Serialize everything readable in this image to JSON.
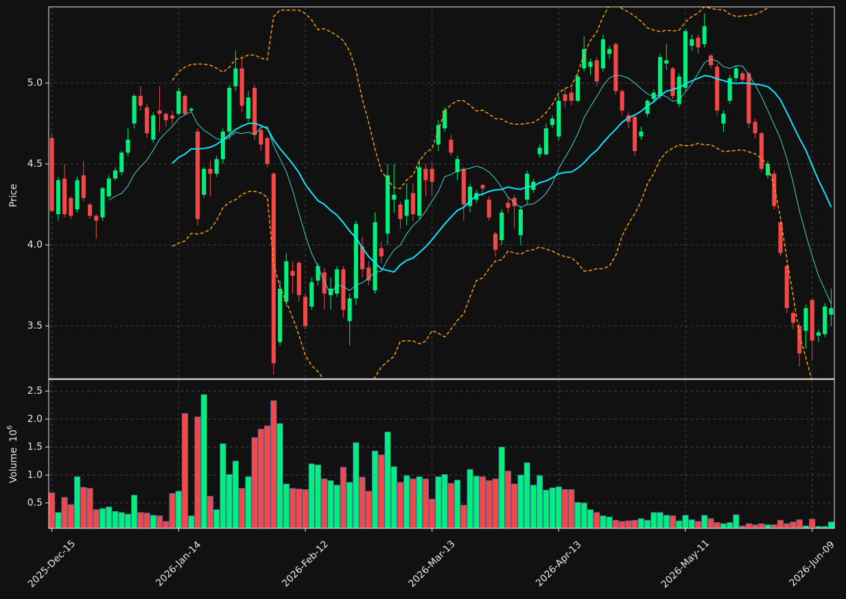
{
  "chart_data": {
    "type": "candlestick",
    "categories": [
      "2025-Dec-15",
      null,
      null,
      null,
      null,
      null,
      null,
      null,
      null,
      null,
      null,
      null,
      null,
      null,
      null,
      null,
      null,
      null,
      null,
      null,
      "2026-Jan-14",
      null,
      null,
      null,
      null,
      null,
      null,
      null,
      null,
      null,
      null,
      null,
      null,
      null,
      null,
      null,
      null,
      null,
      null,
      null,
      "2026-Feb-12",
      null,
      null,
      null,
      null,
      null,
      null,
      null,
      null,
      null,
      null,
      null,
      null,
      null,
      null,
      null,
      null,
      null,
      null,
      null,
      "2026-Mar-13",
      null,
      null,
      null,
      null,
      null,
      null,
      null,
      null,
      null,
      null,
      null,
      null,
      null,
      null,
      null,
      null,
      null,
      null,
      null,
      "2026-Apr-13",
      null,
      null,
      null,
      null,
      null,
      null,
      null,
      null,
      null,
      null,
      null,
      null,
      null,
      null,
      null,
      null,
      null,
      null,
      null,
      "2026-May-11",
      null,
      null,
      null,
      null,
      null,
      null,
      null,
      null,
      null,
      null,
      null,
      null,
      null,
      null,
      null,
      null,
      null,
      null,
      null,
      "2026-Jun-09",
      null,
      null,
      null
    ],
    "open": [
      4.66,
      4.19,
      4.41,
      4.29,
      4.22,
      4.43,
      4.25,
      4.18,
      4.17,
      4.3,
      4.41,
      4.45,
      4.57,
      4.75,
      4.92,
      4.85,
      4.65,
      4.83,
      4.81,
      4.8,
      4.81,
      4.92,
      4.83,
      4.7,
      4.31,
      4.47,
      4.44,
      4.53,
      4.7,
      4.98,
      5.09,
      4.78,
      4.97,
      4.71,
      4.66,
      4.44,
      3.4,
      3.65,
      3.84,
      3.89,
      3.68,
      3.62,
      3.78,
      3.83,
      3.69,
      3.7,
      3.85,
      3.53,
      3.67,
      3.99,
      3.86,
      3.72,
      3.98,
      4.07,
      4.28,
      4.25,
      4.18,
      4.32,
      4.18,
      4.47,
      4.47,
      4.62,
      4.72,
      4.65,
      4.45,
      4.47,
      4.24,
      4.28,
      4.37,
      4.28,
      4.07,
      4.03,
      4.26,
      4.29,
      4.06,
      4.28,
      4.34,
      4.56,
      4.56,
      4.74,
      4.67,
      4.93,
      4.94,
      4.89,
      5.09,
      5.1,
      5.14,
      5.09,
      5.18,
      5.24,
      4.95,
      4.8,
      4.79,
      4.67,
      4.81,
      4.9,
      4.92,
      5.12,
      5.09,
      4.87,
      4.97,
      5.23,
      5.28,
      5.24,
      5.17,
      5.1,
      4.75,
      4.89,
      5.03,
      5.06,
      5.06,
      4.76,
      4.69,
      4.43,
      4.44,
      4.14,
      3.87,
      3.58,
      3.5,
      3.47,
      3.66,
      3.44,
      3.45,
      3.57
    ],
    "high": [
      4.69,
      4.42,
      4.5,
      4.3,
      4.42,
      4.52,
      4.26,
      4.19,
      4.36,
      4.43,
      4.48,
      4.58,
      4.72,
      4.93,
      4.98,
      4.87,
      4.82,
      4.98,
      4.82,
      4.83,
      4.97,
      4.93,
      4.85,
      4.72,
      4.48,
      4.52,
      4.55,
      4.72,
      4.99,
      5.2,
      5.15,
      4.95,
      4.99,
      4.74,
      4.67,
      4.45,
      3.78,
      3.95,
      3.9,
      3.9,
      3.7,
      3.8,
      3.89,
      3.86,
      3.8,
      3.87,
      3.87,
      3.7,
      4.15,
      4.05,
      3.9,
      4.2,
      4.02,
      4.5,
      4.5,
      4.27,
      4.38,
      4.38,
      4.53,
      4.5,
      4.51,
      4.77,
      4.85,
      4.68,
      4.55,
      4.48,
      4.38,
      4.34,
      4.38,
      4.3,
      4.08,
      4.22,
      4.3,
      4.31,
      4.24,
      4.46,
      4.41,
      4.62,
      4.75,
      4.8,
      4.92,
      4.97,
      4.97,
      5.06,
      5.29,
      5.15,
      5.16,
      5.3,
      5.23,
      5.25,
      4.96,
      4.82,
      4.8,
      4.73,
      4.9,
      4.96,
      5.18,
      5.24,
      5.1,
      5.06,
      5.33,
      5.3,
      5.3,
      5.43,
      5.18,
      5.12,
      4.83,
      5.05,
      5.11,
      5.07,
      5.07,
      4.78,
      4.7,
      4.52,
      4.46,
      4.15,
      3.88,
      3.59,
      3.52,
      3.63,
      3.67,
      3.48,
      3.64,
      3.73
    ],
    "low": [
      4.2,
      4.15,
      4.17,
      4.16,
      4.2,
      4.27,
      4.16,
      4.04,
      4.15,
      4.29,
      4.4,
      4.43,
      4.55,
      4.72,
      4.83,
      4.66,
      4.63,
      4.7,
      4.73,
      4.74,
      4.8,
      4.8,
      4.82,
      4.12,
      4.29,
      4.3,
      4.42,
      4.5,
      4.65,
      4.95,
      4.82,
      4.76,
      4.65,
      4.58,
      4.48,
      3.2,
      3.38,
      3.62,
      3.7,
      3.65,
      3.48,
      3.6,
      3.75,
      3.6,
      3.6,
      3.68,
      3.55,
      3.38,
      3.63,
      3.8,
      3.75,
      3.7,
      3.89,
      4.0,
      4.2,
      4.1,
      4.12,
      4.15,
      4.16,
      4.3,
      4.3,
      4.58,
      4.7,
      4.55,
      4.4,
      4.15,
      4.2,
      4.26,
      4.3,
      4.15,
      3.93,
      4.0,
      4.2,
      4.1,
      4.0,
      4.25,
      4.32,
      4.54,
      4.55,
      4.72,
      4.65,
      4.85,
      4.86,
      4.88,
      5.07,
      5.05,
      4.98,
      5.07,
      5.15,
      4.93,
      4.8,
      4.72,
      4.55,
      4.65,
      4.79,
      4.88,
      4.9,
      5.08,
      4.9,
      4.85,
      4.95,
      5.2,
      5.18,
      5.22,
      5.09,
      4.8,
      4.7,
      4.87,
      5.01,
      4.99,
      4.72,
      4.66,
      4.45,
      4.41,
      4.22,
      3.93,
      3.58,
      3.48,
      3.25,
      3.36,
      3.29,
      3.4,
      3.43,
      3.5
    ],
    "close": [
      4.21,
      4.4,
      4.19,
      4.18,
      4.4,
      4.29,
      4.18,
      4.15,
      4.35,
      4.41,
      4.46,
      4.57,
      4.65,
      4.92,
      4.86,
      4.69,
      4.8,
      4.81,
      4.77,
      4.78,
      4.95,
      4.81,
      4.84,
      4.16,
      4.47,
      4.44,
      4.53,
      4.7,
      4.97,
      5.09,
      4.86,
      4.91,
      4.68,
      4.62,
      4.5,
      3.27,
      3.73,
      3.9,
      3.81,
      3.69,
      3.5,
      3.77,
      3.87,
      3.7,
      3.73,
      3.85,
      3.6,
      3.67,
      4.13,
      3.85,
      3.78,
      4.14,
      3.93,
      4.43,
      4.31,
      4.16,
      4.28,
      4.19,
      4.48,
      4.4,
      4.39,
      4.74,
      4.83,
      4.57,
      4.53,
      4.25,
      4.36,
      4.32,
      4.35,
      4.17,
      3.97,
      4.2,
      4.23,
      4.24,
      4.22,
      4.44,
      4.39,
      4.6,
      4.72,
      4.78,
      4.89,
      4.89,
      4.89,
      5.04,
      5.21,
      5.13,
      5.01,
      5.27,
      5.21,
      4.95,
      4.83,
      4.76,
      4.58,
      4.7,
      4.89,
      4.94,
      5.16,
      5.14,
      4.92,
      5.04,
      5.32,
      5.27,
      5.22,
      5.35,
      5.11,
      4.83,
      4.81,
      5.03,
      5.09,
      5.02,
      4.75,
      4.69,
      4.47,
      4.5,
      4.24,
      3.95,
      3.61,
      3.52,
      3.33,
      3.61,
      3.41,
      3.46,
      3.62,
      3.61
    ],
    "volume": [
      0.68,
      0.33,
      0.6,
      0.47,
      0.97,
      0.78,
      0.76,
      0.38,
      0.4,
      0.43,
      0.35,
      0.33,
      0.3,
      0.64,
      0.33,
      0.32,
      0.28,
      0.27,
      0.17,
      0.67,
      0.71,
      2.1,
      0.27,
      2.04,
      2.44,
      0.62,
      0.38,
      1.56,
      1.01,
      1.25,
      0.76,
      0.97,
      1.67,
      1.82,
      1.88,
      2.33,
      1.92,
      0.84,
      0.76,
      0.75,
      0.74,
      1.2,
      1.18,
      0.93,
      0.9,
      0.82,
      1.14,
      0.87,
      1.58,
      0.96,
      0.71,
      1.43,
      1.36,
      1.77,
      1.15,
      0.87,
      0.99,
      0.93,
      0.97,
      0.93,
      0.57,
      0.97,
      1.01,
      0.85,
      0.91,
      0.46,
      1.1,
      0.98,
      0.97,
      0.9,
      0.93,
      1.5,
      1.07,
      0.84,
      1.0,
      1.22,
      0.82,
      0.99,
      0.73,
      0.77,
      0.79,
      0.74,
      0.74,
      0.51,
      0.5,
      0.38,
      0.33,
      0.27,
      0.25,
      0.19,
      0.17,
      0.18,
      0.19,
      0.22,
      0.19,
      0.33,
      0.33,
      0.28,
      0.27,
      0.18,
      0.28,
      0.2,
      0.17,
      0.28,
      0.22,
      0.15,
      0.13,
      0.15,
      0.29,
      0.09,
      0.13,
      0.11,
      0.13,
      0.11,
      0.11,
      0.19,
      0.13,
      0.16,
      0.2,
      0.09,
      0.21,
      0.08,
      0.08,
      0.16
    ],
    "up_color": "#00f07c",
    "down_color": "#f44848",
    "volume_edge_color": "#4a6fa5",
    "xlim": [
      -0.5,
      123.5
    ],
    "ylabel": "Price",
    "ylim": [
      3.174,
      5.47
    ],
    "yticks": [
      3.5,
      {
        "value": 4,
        "label": "4.0"
      },
      4.5,
      {
        "value": 5,
        "label": "5.0"
      }
    ],
    "volume_ylabel": "Volume",
    "volume_multiplier": {
      "base": "10",
      "exponent": "6"
    },
    "volume_ylim": [
      0.046,
      2.71
    ],
    "volume_yticks": [
      0.5,
      {
        "value": 1,
        "label": "1.0"
      },
      1.5,
      {
        "value": 2,
        "label": "2.0"
      },
      2.5
    ],
    "grid": true,
    "overlays": [
      {
        "kind": "sma",
        "window": 10,
        "color": "#3fd8d0",
        "width": 1
      },
      {
        "kind": "sma",
        "window": 20,
        "color": "#12e6ff",
        "width": 2
      },
      {
        "kind": "bollinger",
        "window": 20,
        "k": 2,
        "color": "#ffa000",
        "width": 1.5
      }
    ]
  }
}
